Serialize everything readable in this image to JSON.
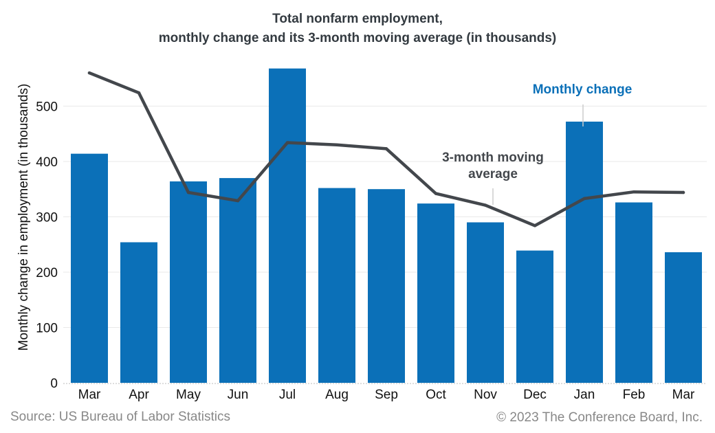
{
  "chart_data": {
    "type": "bar",
    "title": [
      "Total nonfarm employment,",
      "monthly change and its 3-month moving average (in thousands)"
    ],
    "xlabel": "",
    "ylabel": "Monthly change in employment (in thousands)",
    "ylim": [
      0,
      570
    ],
    "yticks": [
      0,
      100,
      200,
      300,
      400,
      500
    ],
    "grid": true,
    "categories": [
      "Mar",
      "Apr",
      "May",
      "Jun",
      "Jul",
      "Aug",
      "Sep",
      "Oct",
      "Nov",
      "Dec",
      "Jan",
      "Feb",
      "Mar"
    ],
    "series": [
      {
        "name": "Monthly change",
        "kind": "bar",
        "color": "#0b70b8",
        "values": [
          414,
          254,
          364,
          370,
          568,
          352,
          350,
          324,
          290,
          239,
          472,
          326,
          236
        ]
      },
      {
        "name": "3-month moving average",
        "kind": "line",
        "color": "#43474c",
        "values": [
          560,
          524,
          344,
          329,
          434,
          430,
          423,
          342,
          321,
          284,
          333,
          345,
          344
        ]
      }
    ],
    "annotations": {
      "bar_label": "Monthly change",
      "line_label": [
        "3-month moving",
        "average"
      ]
    },
    "source": "Source: US Bureau of Labor Statistics",
    "copyright": "© 2023 The Conference Board, Inc."
  }
}
